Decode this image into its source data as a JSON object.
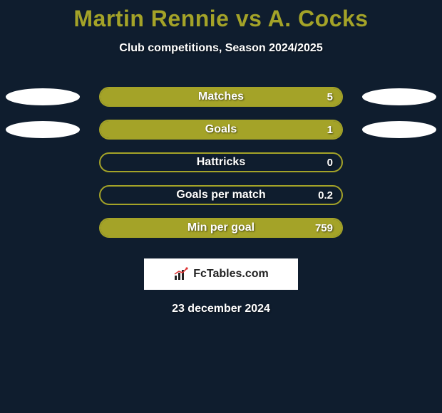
{
  "background_color": "#0f1d2e",
  "accent_color": "#a4a328",
  "title_color": "#a4a328",
  "text_color": "#ffffff",
  "title": "Martin Rennie vs A. Cocks",
  "subtitle": "Club competitions, Season 2024/2025",
  "date": "23 december 2024",
  "badge_text": "FcTables.com",
  "ellipse_color": "#ffffff",
  "bar": {
    "border_radius": 14,
    "track_width": 342,
    "track_height": 28
  },
  "stats": [
    {
      "label": "Matches",
      "value": "5",
      "fill_pct": 100,
      "show_ellipses": true
    },
    {
      "label": "Goals",
      "value": "1",
      "fill_pct": 100,
      "show_ellipses": true
    },
    {
      "label": "Hattricks",
      "value": "0",
      "fill_pct": 0,
      "show_ellipses": false
    },
    {
      "label": "Goals per match",
      "value": "0.2",
      "fill_pct": 0,
      "show_ellipses": false
    },
    {
      "label": "Min per goal",
      "value": "759",
      "fill_pct": 100,
      "show_ellipses": false
    }
  ]
}
